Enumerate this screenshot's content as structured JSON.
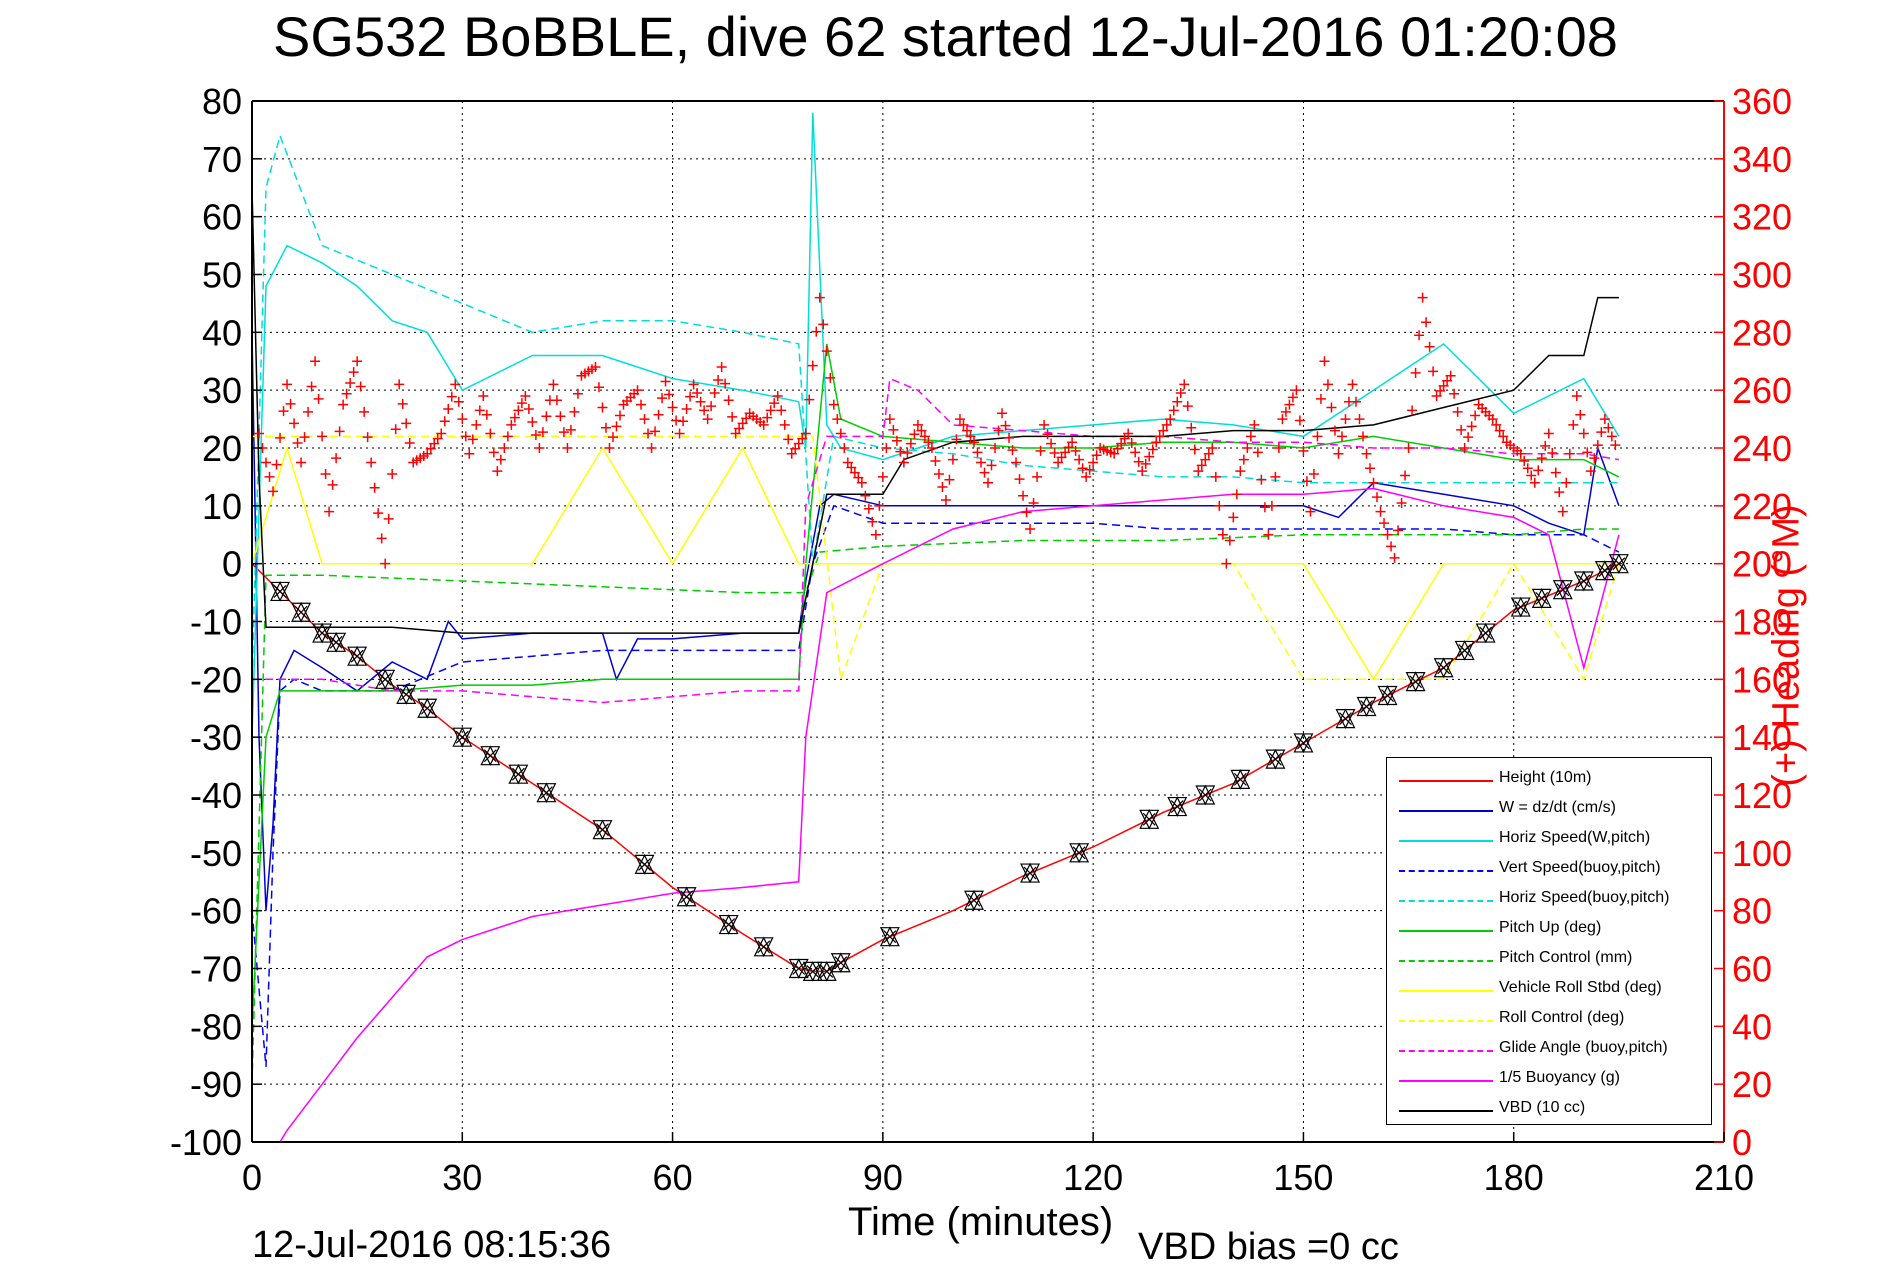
{
  "title": "SG532 BoBBLE, dive 62 started 12-Jul-2016 01:20:08",
  "footer_left": "12-Jul-2016 08:15:36",
  "footer_right": "VBD bias =0 cc",
  "chart_data": {
    "type": "line",
    "title": "SG532 BoBBLE, dive 62 started 12-Jul-2016 01:20:08",
    "xlabel": "Time (minutes)",
    "ylabel": "",
    "y2label": "(+) Heading (°M)",
    "xlim": [
      0,
      210
    ],
    "ylim": [
      -100,
      80
    ],
    "y2lim": [
      0,
      360
    ],
    "xticks": [
      0,
      30,
      60,
      90,
      120,
      150,
      180,
      210
    ],
    "yticks": [
      -100,
      -90,
      -80,
      -70,
      -60,
      -50,
      -40,
      -30,
      -20,
      -10,
      0,
      10,
      20,
      30,
      40,
      50,
      60,
      70,
      80
    ],
    "y2ticks": [
      0,
      20,
      40,
      60,
      80,
      100,
      120,
      140,
      160,
      180,
      200,
      220,
      240,
      260,
      280,
      300,
      320,
      340,
      360
    ],
    "grid": true,
    "legend_position": "bottom-right",
    "colors": {
      "axis": "#000000",
      "right_axis": "#ff0000",
      "grid": "#000000"
    },
    "series": [
      {
        "name": "Height (10m)",
        "color": "#ff0000",
        "style": "solid",
        "x": [
          0,
          5,
          10,
          15,
          20,
          25,
          30,
          40,
          50,
          60,
          70,
          78,
          80,
          82,
          84,
          90,
          100,
          110,
          120,
          130,
          140,
          150,
          160,
          170,
          180,
          190,
          195
        ],
        "y": [
          0,
          -6,
          -12,
          -16,
          -21,
          -25,
          -30,
          -38,
          -46,
          -56,
          -64,
          -70,
          -70.5,
          -70.5,
          -69,
          -65,
          -60,
          -54,
          -49,
          -43,
          -38,
          -31,
          -24,
          -18,
          -8,
          -3,
          0
        ]
      },
      {
        "name": "W = dz/dt (cm/s)",
        "color": "#0000cc",
        "style": "solid",
        "x": [
          0,
          1,
          2,
          3,
          4,
          6,
          10,
          15,
          20,
          25,
          28,
          30,
          40,
          50,
          52,
          55,
          60,
          70,
          78,
          79,
          81,
          83,
          90,
          100,
          110,
          120,
          130,
          140,
          150,
          155,
          160,
          170,
          180,
          185,
          190,
          192,
          195
        ],
        "y": [
          40,
          -30,
          -60,
          -45,
          -20,
          -15,
          -18,
          -22,
          -17,
          -20,
          -10,
          -13,
          -12,
          -12,
          -20,
          -13,
          -13,
          -12,
          -12,
          -3,
          10,
          12,
          10,
          10,
          10,
          10,
          10,
          10,
          10,
          8,
          14,
          12,
          10,
          7,
          5,
          20,
          10
        ]
      },
      {
        "name": "Horiz Speed(W,pitch)",
        "color": "#00dddd",
        "style": "solid",
        "x": [
          0,
          2,
          5,
          10,
          15,
          20,
          25,
          30,
          40,
          50,
          60,
          70,
          78,
          79,
          80,
          82,
          84,
          90,
          100,
          110,
          120,
          130,
          140,
          150,
          160,
          170,
          180,
          190,
          195
        ],
        "y": [
          -30,
          48,
          55,
          52,
          48,
          42,
          40,
          30,
          36,
          36,
          32,
          30,
          28,
          20,
          78,
          24,
          20,
          18,
          22,
          23,
          24,
          25,
          24,
          22,
          30,
          38,
          26,
          32,
          22
        ]
      },
      {
        "name": "Vert Speed(buoy,pitch)",
        "color": "#0000ff",
        "style": "dashed",
        "x": [
          0,
          2,
          3,
          4,
          6,
          10,
          20,
          30,
          40,
          50,
          60,
          70,
          78,
          80,
          83,
          90,
          100,
          110,
          120,
          130,
          140,
          150,
          160,
          170,
          180,
          190,
          195
        ],
        "y": [
          -60,
          -87,
          -50,
          -22,
          -20,
          -22,
          -22,
          -17,
          -16,
          -15,
          -15,
          -15,
          -15,
          0,
          10,
          7,
          7,
          7,
          7,
          6,
          6,
          6,
          6,
          6,
          5,
          5,
          2
        ]
      },
      {
        "name": "Horiz Speed(buoy,pitch)",
        "color": "#00dddd",
        "style": "dashed",
        "x": [
          0,
          2,
          4,
          10,
          20,
          30,
          40,
          50,
          60,
          70,
          78,
          80,
          83,
          90,
          100,
          110,
          120,
          130,
          140,
          150,
          160,
          170,
          180,
          190,
          195
        ],
        "y": [
          -20,
          65,
          74,
          55,
          50,
          45,
          40,
          42,
          42,
          40,
          38,
          0,
          22,
          20,
          19,
          17,
          16,
          15,
          15,
          14,
          14,
          14,
          14,
          14,
          14
        ]
      },
      {
        "name": "Pitch Up (deg)",
        "color": "#00cc00",
        "style": "solid",
        "x": [
          0,
          2,
          4,
          10,
          20,
          30,
          40,
          50,
          60,
          70,
          78,
          79,
          82,
          84,
          90,
          100,
          110,
          120,
          130,
          140,
          150,
          160,
          170,
          180,
          190,
          195
        ],
        "y": [
          -80,
          -30,
          -22,
          -22,
          -22,
          -21,
          -21,
          -20,
          -20,
          -20,
          -20,
          0,
          38,
          25,
          22,
          21,
          20,
          20,
          21,
          21,
          20,
          22,
          20,
          18,
          18,
          15
        ]
      },
      {
        "name": "Pitch Control (mm)",
        "color": "#00cc00",
        "style": "dashed",
        "x": [
          0,
          2,
          10,
          30,
          50,
          70,
          79,
          81,
          90,
          110,
          130,
          150,
          170,
          180,
          190,
          195
        ],
        "y": [
          -90,
          -2,
          -2,
          -3,
          -4,
          -5,
          -5,
          2,
          3,
          4,
          4,
          5,
          5,
          5,
          6,
          6
        ]
      },
      {
        "name": "Vehicle Roll Stbd (deg)",
        "color": "#ffff00",
        "style": "solid",
        "x": [
          0,
          5,
          10,
          20,
          30,
          40,
          50,
          60,
          70,
          78,
          90,
          100,
          110,
          120,
          130,
          140,
          150,
          160,
          170,
          180,
          190,
          195
        ],
        "y": [
          0,
          20,
          0,
          0,
          0,
          0,
          20,
          0,
          20,
          0,
          0,
          0,
          0,
          0,
          0,
          0,
          0,
          -20,
          0,
          0,
          0,
          0
        ]
      },
      {
        "name": "Roll Control (deg)",
        "color": "#ffff00",
        "style": "dashed",
        "x": [
          0,
          80,
          84,
          90,
          140,
          150,
          160,
          170,
          180,
          190,
          195
        ],
        "y": [
          22,
          22,
          -20,
          0,
          0,
          -20,
          -20,
          -20,
          0,
          -20,
          0
        ]
      },
      {
        "name": "Glide Angle (buoy,pitch)",
        "color": "#ff00ff",
        "style": "dashed",
        "x": [
          0,
          5,
          10,
          20,
          30,
          40,
          50,
          60,
          70,
          78,
          79,
          82,
          90,
          91,
          95,
          100,
          110,
          120,
          130,
          140,
          150,
          160,
          170,
          180,
          190,
          195
        ],
        "y": [
          -20,
          -20,
          -20,
          -22,
          -22,
          -23,
          -24,
          -23,
          -22,
          -22,
          10,
          22,
          22,
          32,
          30,
          24,
          23,
          22,
          22,
          21,
          21,
          20,
          20,
          19,
          19,
          18
        ]
      },
      {
        "name": "1/5 Buoyancy (g)",
        "color": "#ff00ff",
        "style": "solid",
        "x": [
          0,
          4,
          5,
          10,
          15,
          20,
          25,
          30,
          40,
          50,
          60,
          70,
          78,
          79,
          82,
          90,
          100,
          110,
          120,
          130,
          140,
          150,
          160,
          170,
          180,
          185,
          190,
          195
        ],
        "y": [
          -100,
          -100,
          -98,
          -90,
          -82,
          -75,
          -68,
          -65,
          -61,
          -59,
          -57,
          -56,
          -55,
          -30,
          -5,
          0,
          6,
          9,
          10,
          11,
          12,
          12,
          13,
          10,
          8,
          5,
          -18,
          5
        ]
      },
      {
        "name": "VBD (10 cc)",
        "color": "#000000",
        "style": "solid",
        "x": [
          0,
          1,
          2,
          3,
          10,
          20,
          30,
          40,
          50,
          60,
          70,
          78,
          80,
          82,
          90,
          93,
          100,
          110,
          120,
          130,
          140,
          150,
          160,
          170,
          180,
          185,
          190,
          192,
          195
        ],
        "y": [
          65,
          15,
          -11,
          -11,
          -11,
          -11,
          -12,
          -12,
          -12,
          -12,
          -12,
          -12,
          0,
          12,
          12,
          18,
          21,
          22,
          22,
          22,
          23,
          23,
          24,
          27,
          30,
          36,
          36,
          46,
          46
        ]
      }
    ],
    "heading_series": {
      "name": "Heading",
      "color": "#ff0000",
      "marker": "+",
      "x": [
        1,
        3,
        5,
        7,
        9,
        11,
        13,
        15,
        17,
        19,
        21,
        23,
        25,
        27,
        29,
        31,
        33,
        35,
        37,
        39,
        41,
        43,
        45,
        47,
        49,
        51,
        53,
        55,
        57,
        59,
        61,
        63,
        65,
        67,
        69,
        71,
        73,
        75,
        77,
        79,
        81,
        83,
        85,
        87,
        89,
        91,
        93,
        95,
        97,
        99,
        101,
        103,
        105,
        107,
        109,
        111,
        113,
        115,
        117,
        119,
        121,
        123,
        125,
        127,
        129,
        131,
        133,
        135,
        137,
        139,
        141,
        143,
        145,
        147,
        149,
        151,
        153,
        155,
        157,
        159,
        161,
        163,
        165,
        167,
        169,
        171,
        173,
        175,
        177,
        179,
        181,
        183,
        185,
        187,
        189,
        191,
        193,
        195
      ],
      "y": [
        245,
        225,
        262,
        235,
        270,
        218,
        255,
        270,
        235,
        200,
        262,
        235,
        238,
        245,
        262,
        238,
        258,
        232,
        248,
        258,
        240,
        262,
        240,
        265,
        268,
        240,
        255,
        260,
        240,
        263,
        245,
        262,
        250,
        268,
        245,
        252,
        248,
        258,
        238,
        245,
        292,
        255,
        235,
        228,
        210,
        250,
        235,
        248,
        240,
        222,
        250,
        242,
        228,
        252,
        235,
        212,
        248,
        235,
        242,
        230,
        240,
        238,
        245,
        232,
        242,
        250,
        262,
        232,
        240,
        200,
        232,
        248,
        210,
        250,
        260,
        218,
        270,
        238,
        262,
        238,
        218,
        202,
        240,
        292,
        258,
        265,
        240,
        255,
        250,
        242,
        238,
        228,
        245,
        218,
        258,
        232,
        250,
        238
      ]
    },
    "markers_on_height": {
      "symbols": [
        "open-triangle-up",
        "open-triangle-down",
        "x"
      ],
      "color": "#000000",
      "x": [
        4,
        7,
        10,
        12,
        15,
        19,
        22,
        25,
        30,
        34,
        38,
        42,
        50,
        56,
        62,
        68,
        73,
        78,
        80,
        82,
        84,
        91,
        103,
        111,
        118,
        128,
        132,
        136,
        141,
        146,
        150,
        156,
        159,
        162,
        166,
        170,
        173,
        176,
        181,
        184,
        187,
        190,
        193,
        195
      ]
    }
  }
}
